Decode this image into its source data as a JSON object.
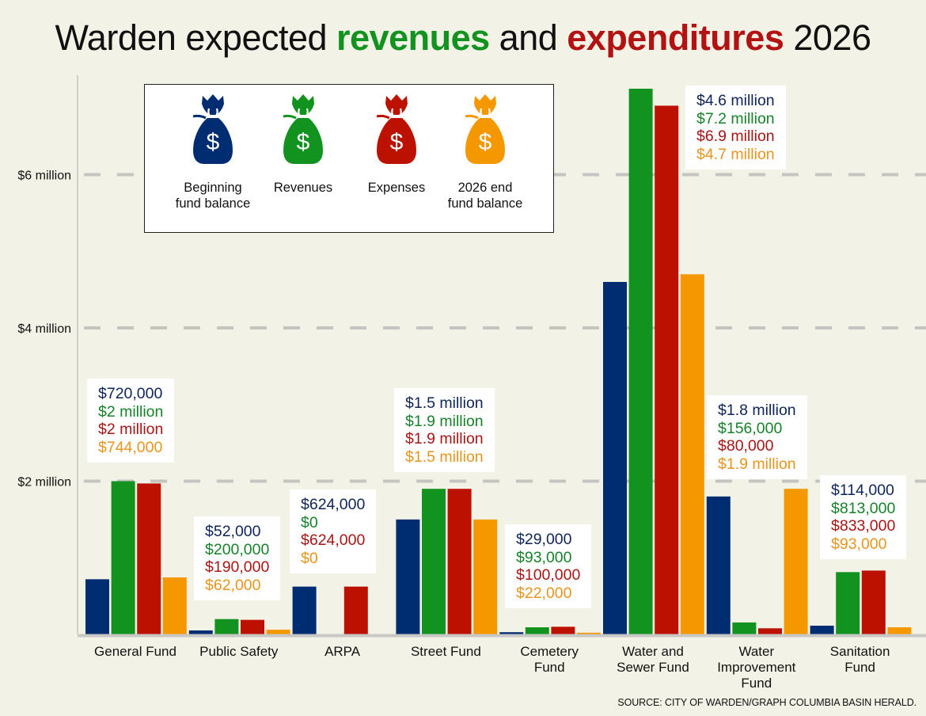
{
  "title": {
    "part1": "Warden expected ",
    "part2": "revenues",
    "part3": " and ",
    "part4": "expenditures",
    "part5": " 2026"
  },
  "colors": {
    "beginning": "#002d72",
    "revenues": "#12921f",
    "expenses": "#bd1100",
    "end": "#f59800",
    "revenues_title": "#12921f",
    "expenses_title": "#b31212",
    "background": "#f3f2e7",
    "grid": "#c4c4c1"
  },
  "legend": {
    "items": [
      {
        "label_line1": "Beginning",
        "label_line2": "fund balance",
        "icon": "money-bag-icon",
        "color_key": "beginning"
      },
      {
        "label_line1": "Revenues",
        "label_line2": "",
        "icon": "money-bag-icon",
        "color_key": "revenues"
      },
      {
        "label_line1": "Expenses",
        "label_line2": "",
        "icon": "money-bag-icon",
        "color_key": "expenses"
      },
      {
        "label_line1": "2026 end",
        "label_line2": "fund balance",
        "icon": "money-bag-icon",
        "color_key": "end"
      }
    ]
  },
  "source": "SOURCE: CITY OF WARDEN/GRAPH COLUMBIA BASIN HERALD.",
  "chart_data": {
    "type": "bar",
    "title": "Warden expected revenues and expenditures 2026",
    "xlabel": "",
    "ylabel": "",
    "ylim": [
      0,
      7.2
    ],
    "yunit": "million dollars",
    "yticks": [
      {
        "value": 2,
        "label": "$2 million"
      },
      {
        "value": 4,
        "label": "$4 million"
      },
      {
        "value": 6,
        "label": "$6 million"
      }
    ],
    "grid": true,
    "legend_position": "top-left",
    "categories": [
      {
        "line1": "General Fund",
        "line2": "",
        "line3": ""
      },
      {
        "line1": "Public Safety",
        "line2": "",
        "line3": ""
      },
      {
        "line1": "ARPA",
        "line2": "",
        "line3": ""
      },
      {
        "line1": "Street Fund",
        "line2": "",
        "line3": ""
      },
      {
        "line1": "Cemetery",
        "line2": "Fund",
        "line3": ""
      },
      {
        "line1": "Water and",
        "line2": "Sewer Fund",
        "line3": ""
      },
      {
        "line1": "Water",
        "line2": "Improvement",
        "line3": "Fund"
      },
      {
        "line1": "Sanitation",
        "line2": "Fund",
        "line3": ""
      }
    ],
    "series": [
      {
        "name": "Beginning fund balance",
        "color_key": "beginning",
        "values": [
          0.72,
          0.052,
          0.624,
          1.5,
          0.029,
          4.6,
          1.8,
          0.114
        ],
        "labels": [
          "$720,000",
          "$52,000",
          "$624,000",
          "$1.5 million",
          "$29,000",
          "$4.6 million",
          "$1.8 million",
          "$114,000"
        ]
      },
      {
        "name": "Revenues",
        "color_key": "revenues",
        "values": [
          2.0,
          0.2,
          0,
          1.9,
          0.093,
          7.2,
          0.156,
          0.813
        ],
        "labels": [
          "$2 million",
          "$200,000",
          "$0",
          "$1.9 million",
          "$93,000",
          "$7.2 million",
          "$156,000",
          "$813,000"
        ]
      },
      {
        "name": "Expenses",
        "color_key": "expenses",
        "values": [
          1.97,
          0.19,
          0.624,
          1.9,
          0.1,
          6.9,
          0.08,
          0.833
        ],
        "labels": [
          "$2 million",
          "$190,000",
          "$624,000",
          "$1.9 million",
          "$100,000",
          "$6.9 million",
          "$80,000",
          "$833,000"
        ]
      },
      {
        "name": "2026 end fund balance",
        "color_key": "end",
        "values": [
          0.744,
          0.062,
          0,
          1.5,
          0.022,
          4.7,
          1.9,
          0.093
        ],
        "labels": [
          "$744,000",
          "$62,000",
          "$0",
          "$1.5 million",
          "$22,000",
          "$4.7 million",
          "$1.9 million",
          "$93,000"
        ]
      }
    ]
  }
}
